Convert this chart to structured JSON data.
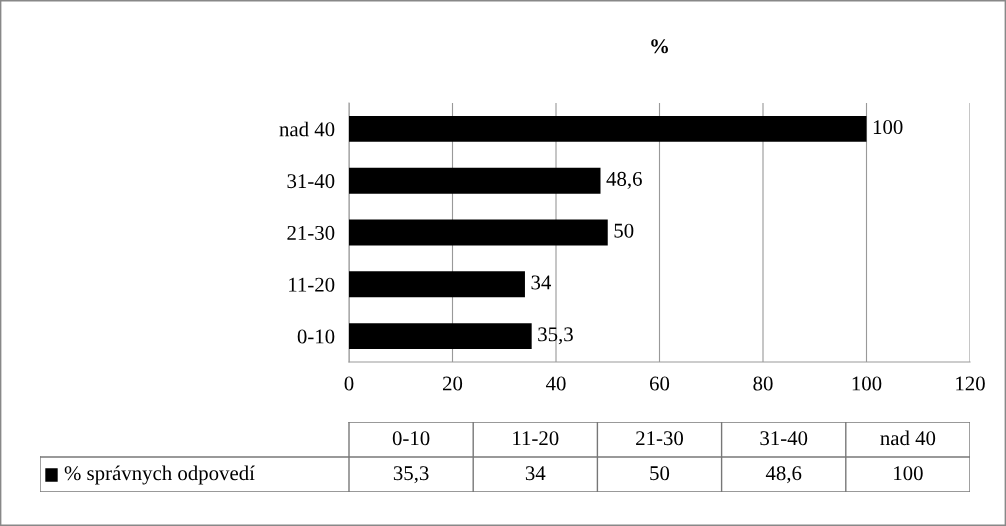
{
  "chart_data": {
    "type": "bar",
    "orientation": "horizontal",
    "title": "%",
    "categories": [
      "nad 40",
      "31-40",
      "21-30",
      "11-20",
      "0-10"
    ],
    "series": [
      {
        "name": "% správnych odpovedí",
        "color": "#000000",
        "values": [
          100,
          48.6,
          50,
          34,
          35.3
        ],
        "value_labels": [
          "100",
          "48,6",
          "50",
          "34",
          "35,3"
        ]
      }
    ],
    "xlim": [
      0,
      120
    ],
    "xticks": [
      0,
      20,
      40,
      60,
      80,
      100,
      120
    ],
    "grid": "x",
    "legend": "bottom",
    "data_labels": true
  }
}
